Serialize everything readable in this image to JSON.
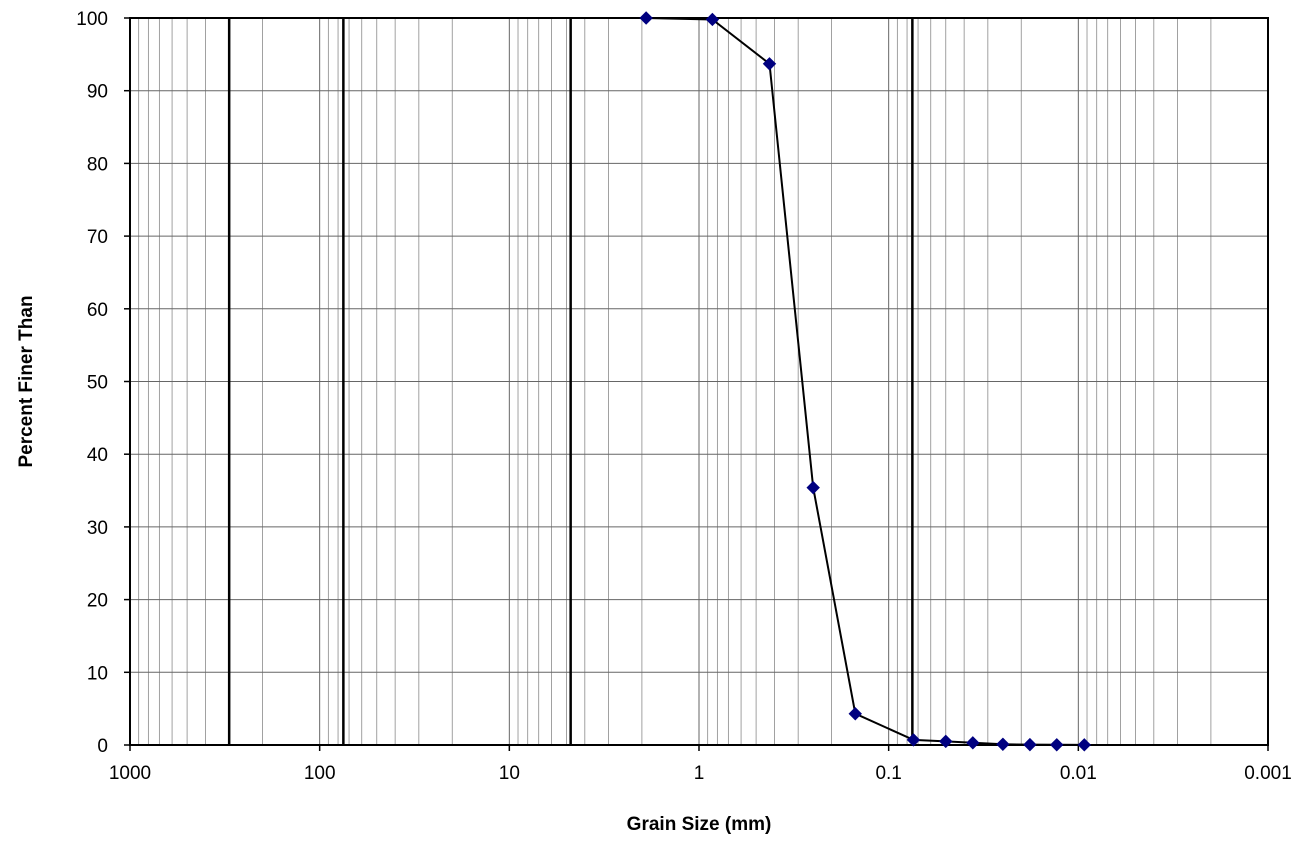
{
  "chart_data": {
    "type": "scatter",
    "title": "",
    "xlabel": "Grain Size (mm)",
    "ylabel": "Percent Finer Than",
    "x_scale": "log",
    "x_reversed": true,
    "xlim": [
      1000,
      0.001
    ],
    "ylim": [
      0,
      100
    ],
    "x_ticks": [
      {
        "value": 1000,
        "label": "1000"
      },
      {
        "value": 100,
        "label": "100"
      },
      {
        "value": 10,
        "label": "10"
      },
      {
        "value": 1,
        "label": "1"
      },
      {
        "value": 0.1,
        "label": "0.1"
      },
      {
        "value": 0.01,
        "label": "0.01"
      },
      {
        "value": 0.001,
        "label": "0.001"
      }
    ],
    "y_ticks": [
      {
        "value": 0,
        "label": "0"
      },
      {
        "value": 10,
        "label": "10"
      },
      {
        "value": 20,
        "label": "20"
      },
      {
        "value": 30,
        "label": "30"
      },
      {
        "value": 40,
        "label": "40"
      },
      {
        "value": 50,
        "label": "50"
      },
      {
        "value": 60,
        "label": "60"
      },
      {
        "value": 70,
        "label": "70"
      },
      {
        "value": 80,
        "label": "80"
      },
      {
        "value": 90,
        "label": "90"
      },
      {
        "value": 100,
        "label": "100"
      }
    ],
    "grid": true,
    "reference_lines_x": [
      300,
      75,
      4.75,
      0.075
    ],
    "series": [
      {
        "marker": "diamond",
        "color": "#000080",
        "line_color": "#000000",
        "x": [
          1.9,
          0.85,
          0.425,
          0.25,
          0.15,
          0.074,
          0.05,
          0.036,
          0.025,
          0.018,
          0.013,
          0.0093
        ],
        "y": [
          100,
          99.8,
          93.7,
          35.4,
          4.3,
          0.7,
          0.5,
          0.3,
          0.1,
          0.05,
          0.03,
          0.02
        ]
      }
    ]
  }
}
